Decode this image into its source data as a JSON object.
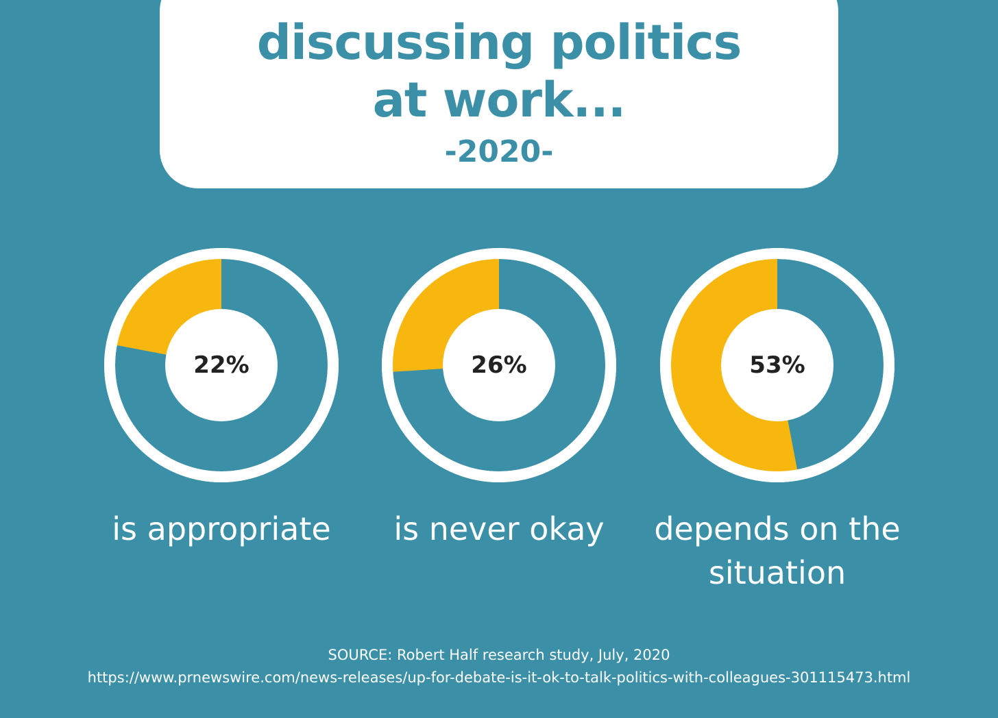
{
  "header": {
    "title_line1": "discussing politics",
    "title_line2": "at work...",
    "subtitle": "-2020-"
  },
  "colors": {
    "background": "#3b90a8",
    "highlight": "#f7b70f",
    "ring": "#ffffff",
    "label_text": "#222222"
  },
  "chart_data": {
    "type": "pie",
    "style": "donut",
    "charts": [
      {
        "value": 22,
        "label": "22%",
        "caption": "is appropriate"
      },
      {
        "value": 26,
        "label": "26%",
        "caption": "is never okay"
      },
      {
        "value": 53,
        "label": "53%",
        "caption": "depends on the situation"
      }
    ]
  },
  "footer": {
    "source": "SOURCE: Robert Half research study, July, 2020",
    "url": "https://www.prnewswire.com/news-releases/up-for-debate-is-it-ok-to-talk-politics-with-colleagues-301115473.html"
  }
}
